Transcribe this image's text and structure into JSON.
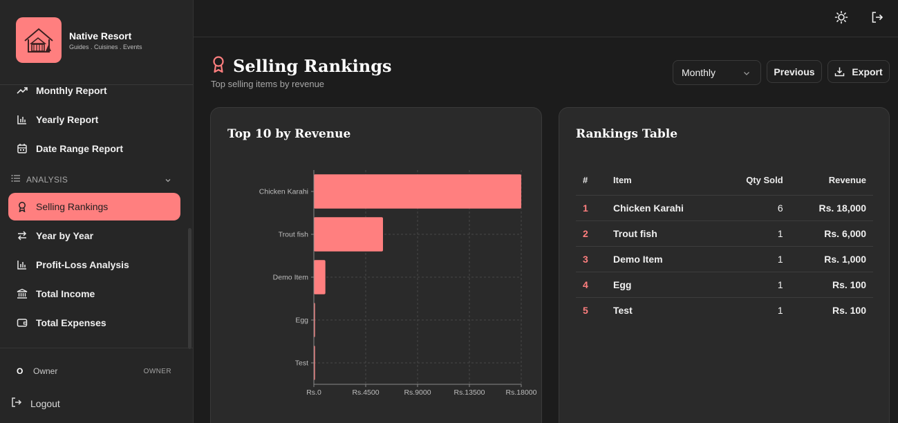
{
  "brand": {
    "name": "Native Resort",
    "tagline": "Guides . Cuisines . Events"
  },
  "sidebar": {
    "items": [
      {
        "label": "Monthly Report",
        "icon": "trending-up-icon"
      },
      {
        "label": "Yearly Report",
        "icon": "bar-chart-icon"
      },
      {
        "label": "Date Range Report",
        "icon": "calendar-icon"
      }
    ],
    "section": {
      "label": "ANALYSIS",
      "icon": "list-icon"
    },
    "analysis_items": [
      {
        "label": "Selling Rankings",
        "icon": "award-icon",
        "active": true
      },
      {
        "label": "Year by Year",
        "icon": "swap-icon"
      },
      {
        "label": "Profit-Loss Analysis",
        "icon": "bar-chart-icon"
      },
      {
        "label": "Total Income",
        "icon": "bank-icon"
      },
      {
        "label": "Total Expenses",
        "icon": "wallet-icon"
      }
    ],
    "user": {
      "initial": "O",
      "name": "Owner",
      "role": "OWNER"
    },
    "logout_label": "Logout"
  },
  "header": {
    "title": "Selling Rankings",
    "subtitle": "Top selling items by revenue",
    "period": "Monthly",
    "previous_label": "Previous",
    "export_label": "Export"
  },
  "chart_card": {
    "title": "Top 10 by Revenue"
  },
  "chart_data": {
    "type": "bar",
    "orientation": "horizontal",
    "categories": [
      "Chicken Karahi",
      "Trout fish",
      "Demo Item",
      "Egg",
      "Test"
    ],
    "values": [
      18000,
      6000,
      1000,
      100,
      100
    ],
    "xlim": [
      0,
      18000
    ],
    "xticks": [
      0,
      4500,
      9000,
      13500,
      18000
    ],
    "xtick_labels": [
      "Rs.0",
      "Rs.4500",
      "Rs.9000",
      "Rs.13500",
      "Rs.18000"
    ],
    "grid": true,
    "bar_color": "#ff7f7f"
  },
  "table_card": {
    "title": "Rankings Table",
    "columns": [
      "#",
      "Item",
      "Qty Sold",
      "Revenue"
    ],
    "rows": [
      {
        "rank": "1",
        "item": "Chicken Karahi",
        "qty": "6",
        "revenue": "Rs. 18,000"
      },
      {
        "rank": "2",
        "item": "Trout fish",
        "qty": "1",
        "revenue": "Rs. 6,000"
      },
      {
        "rank": "3",
        "item": "Demo Item",
        "qty": "1",
        "revenue": "Rs. 1,000"
      },
      {
        "rank": "4",
        "item": "Egg",
        "qty": "1",
        "revenue": "Rs. 100"
      },
      {
        "rank": "5",
        "item": "Test",
        "qty": "1",
        "revenue": "Rs. 100"
      }
    ]
  },
  "colors": {
    "accent": "#ff7f7f",
    "background": "#1c1c1c",
    "card": "#2a2a2a"
  }
}
